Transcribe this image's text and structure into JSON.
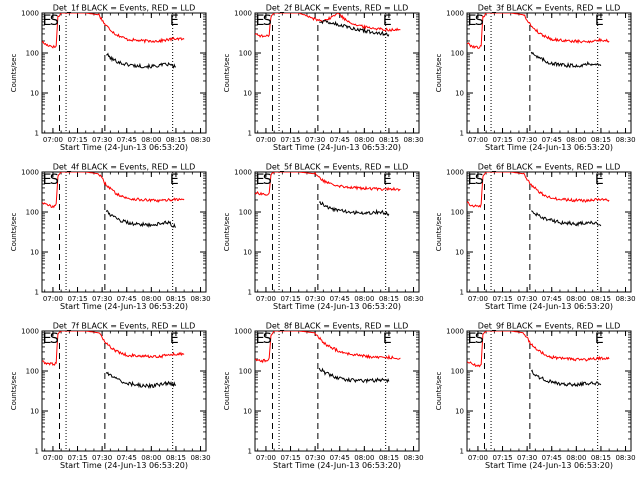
{
  "chart_data": {
    "type": "line",
    "y_scale": "log",
    "ylim": [
      1,
      1000
    ],
    "y_ticks": [
      "1",
      "10",
      "100",
      "1000"
    ],
    "ylabel": "Counts/sec",
    "xlabel": "Start Time (24-Jun-13 06:53:20)",
    "x_range": [
      "06:53:20",
      "08:33:20"
    ],
    "x_ticks": [
      "07:00",
      "07:15",
      "07:30",
      "07:45",
      "08:00",
      "08:15",
      "08:30"
    ],
    "colors": {
      "events": "#000000",
      "lld": "#ff0000"
    },
    "series_labels": {
      "events": "BLACK = Events",
      "lld": "RED = LLD"
    },
    "panels": [
      {
        "title": "Det_1f BLACK = Events, RED = LLD",
        "markers": {
          "start": "S",
          "end": "E"
        },
        "marker_times": {
          "S": "07:00:50",
          "E": "08:14:00"
        },
        "dashed_times": [
          "07:04:00",
          "07:31:40"
        ],
        "dotted_times": [
          "07:08:00",
          "08:13:00"
        ],
        "lld": {
          "t": [
            "06:53:20",
            "06:56",
            "06:59",
            "07:01",
            "07:02",
            "07:03",
            "07:05",
            "07:10",
            "07:20",
            "07:28",
            "07:32",
            "07:38",
            "07:45",
            "07:55",
            "08:05",
            "08:15",
            "08:20"
          ],
          "v": [
            190,
            160,
            150,
            140,
            150,
            800,
            1000,
            1000,
            1000,
            900,
            500,
            300,
            220,
            200,
            200,
            230,
            220
          ]
        },
        "events": {
          "t": [
            "07:32:30",
            "07:36",
            "07:42",
            "07:50",
            "08:00",
            "08:10",
            "08:15"
          ],
          "v": [
            95,
            70,
            55,
            48,
            46,
            52,
            45
          ]
        }
      },
      {
        "title": "Det_2f BLACK = Events, RED = LLD",
        "markers": {
          "start": "S",
          "end": "E"
        },
        "marker_times": {
          "S": "07:00:50",
          "E": "08:14:00"
        },
        "dashed_times": [
          "07:04:00",
          "07:31:40"
        ],
        "dotted_times": [
          "07:08:00",
          "08:13:00"
        ],
        "lld": {
          "t": [
            "06:53:20",
            "06:58",
            "07:01",
            "07:02",
            "07:03",
            "07:05",
            "07:10",
            "07:20",
            "07:30",
            "07:33",
            "07:38",
            "07:44",
            "07:48",
            "07:55",
            "08:00",
            "08:05",
            "08:15",
            "08:22"
          ],
          "v": [
            300,
            260,
            260,
            300,
            800,
            1000,
            1000,
            1000,
            700,
            650,
            700,
            1000,
            700,
            500,
            450,
            420,
            380,
            380
          ]
        },
        "events": {
          "t": [
            "07:32:30",
            "07:38",
            "07:45",
            "07:55",
            "08:05",
            "08:15"
          ],
          "v": [
            620,
            600,
            500,
            400,
            330,
            290
          ]
        }
      },
      {
        "title": "Det_3f BLACK = Events, RED = LLD",
        "markers": {
          "start": "S",
          "end": "E"
        },
        "marker_times": {
          "S": "07:00:50",
          "E": "08:14:00"
        },
        "dashed_times": [
          "07:04:00",
          "07:31:40"
        ],
        "dotted_times": [
          "07:08:00",
          "08:13:00"
        ],
        "lld": {
          "t": [
            "06:53:20",
            "06:56",
            "06:59",
            "07:01",
            "07:02",
            "07:03",
            "07:05",
            "07:10",
            "07:20",
            "07:28",
            "07:32",
            "07:38",
            "07:45",
            "07:55",
            "08:05",
            "08:15",
            "08:20"
          ],
          "v": [
            180,
            150,
            140,
            140,
            150,
            800,
            1000,
            1000,
            1000,
            900,
            500,
            300,
            220,
            200,
            190,
            210,
            200
          ]
        },
        "events": {
          "t": [
            "07:32:30",
            "07:36",
            "07:42",
            "07:50",
            "08:00",
            "08:10",
            "08:15"
          ],
          "v": [
            110,
            80,
            60,
            50,
            48,
            55,
            48
          ]
        }
      },
      {
        "title": "Det_4f BLACK = Events, RED = LLD",
        "markers": {
          "start": "S",
          "end": "E"
        },
        "marker_times": {
          "S": "07:00:50",
          "E": "08:14:00"
        },
        "dashed_times": [
          "07:04:00",
          "07:31:40"
        ],
        "dotted_times": [
          "07:08:00",
          "08:13:00"
        ],
        "lld": {
          "t": [
            "06:53:20",
            "06:56",
            "06:59",
            "07:01",
            "07:02",
            "07:03",
            "07:05",
            "07:10",
            "07:20",
            "07:28",
            "07:32",
            "07:38",
            "07:45",
            "07:55",
            "08:05",
            "08:15",
            "08:20"
          ],
          "v": [
            180,
            150,
            140,
            140,
            150,
            800,
            1000,
            1000,
            1000,
            900,
            500,
            300,
            220,
            200,
            190,
            210,
            200
          ]
        },
        "events": {
          "t": [
            "07:32:30",
            "07:36",
            "07:42",
            "07:50",
            "08:00",
            "08:10",
            "08:15"
          ],
          "v": [
            105,
            80,
            60,
            50,
            48,
            55,
            42
          ]
        }
      },
      {
        "title": "Det_5f BLACK = Events, RED = LLD",
        "markers": {
          "start": "S",
          "end": "E"
        },
        "marker_times": {
          "S": "07:00:50",
          "E": "08:14:00"
        },
        "dashed_times": [
          "07:04:00",
          "07:31:40"
        ],
        "dotted_times": [
          "07:08:00",
          "08:13:00"
        ],
        "lld": {
          "t": [
            "06:53:20",
            "06:58",
            "07:01",
            "07:02",
            "07:03",
            "07:05",
            "07:10",
            "07:20",
            "07:30",
            "07:35",
            "07:45",
            "07:55",
            "08:05",
            "08:15",
            "08:22"
          ],
          "v": [
            310,
            280,
            280,
            300,
            800,
            1000,
            1000,
            1000,
            900,
            600,
            450,
            400,
            380,
            380,
            370
          ]
        },
        "events": {
          "t": [
            "07:32:30",
            "07:36",
            "07:42",
            "07:50",
            "08:00",
            "08:10",
            "08:15"
          ],
          "v": [
            180,
            140,
            115,
            100,
            95,
            100,
            90
          ]
        }
      },
      {
        "title": "Det_6f BLACK = Events, RED = LLD",
        "markers": {
          "start": "S",
          "end": "E"
        },
        "marker_times": {
          "S": "07:00:50",
          "E": "08:14:00"
        },
        "dashed_times": [
          "07:04:00",
          "07:31:40"
        ],
        "dotted_times": [
          "07:08:00",
          "08:13:00"
        ],
        "lld": {
          "t": [
            "06:53:20",
            "06:56",
            "06:59",
            "07:01",
            "07:02",
            "07:03",
            "07:05",
            "07:10",
            "07:20",
            "07:28",
            "07:32",
            "07:38",
            "07:45",
            "07:55",
            "08:05",
            "08:15",
            "08:20"
          ],
          "v": [
            175,
            150,
            140,
            140,
            150,
            800,
            1000,
            1000,
            1000,
            900,
            500,
            300,
            220,
            200,
            190,
            210,
            200
          ]
        },
        "events": {
          "t": [
            "07:32:30",
            "07:36",
            "07:42",
            "07:50",
            "08:00",
            "08:10",
            "08:15"
          ],
          "v": [
            110,
            85,
            65,
            55,
            50,
            55,
            45
          ]
        }
      },
      {
        "title": "Det_7f BLACK = Events, RED = LLD",
        "markers": {
          "start": "S",
          "end": "E"
        },
        "marker_times": {
          "S": "07:00:50",
          "E": "08:14:00"
        },
        "dashed_times": [
          "07:04:00",
          "07:31:40"
        ],
        "dotted_times": [
          "07:08:00",
          "08:13:00"
        ],
        "lld": {
          "t": [
            "06:53:20",
            "06:56",
            "06:59",
            "07:01",
            "07:02",
            "07:03",
            "07:05",
            "07:10",
            "07:20",
            "07:28",
            "07:32",
            "07:38",
            "07:45",
            "07:55",
            "08:05",
            "08:15",
            "08:20"
          ],
          "v": [
            180,
            150,
            150,
            150,
            160,
            800,
            1000,
            1000,
            1000,
            900,
            500,
            320,
            250,
            230,
            230,
            270,
            260
          ]
        },
        "events": {
          "t": [
            "07:32:30",
            "07:36",
            "07:42",
            "07:50",
            "08:00",
            "08:10",
            "08:15"
          ],
          "v": [
            95,
            70,
            55,
            45,
            42,
            50,
            45
          ]
        }
      },
      {
        "title": "Det_8f BLACK = Events, RED = LLD",
        "markers": {
          "start": "S",
          "end": "E"
        },
        "marker_times": {
          "S": "07:00:50",
          "E": "08:14:00"
        },
        "dashed_times": [
          "07:04:00",
          "07:31:40"
        ],
        "dotted_times": [
          "07:08:00",
          "08:13:00"
        ],
        "lld": {
          "t": [
            "06:53:20",
            "06:58",
            "07:01",
            "07:02",
            "07:03",
            "07:05",
            "07:10",
            "07:20",
            "07:30",
            "07:35",
            "07:45",
            "07:55",
            "08:05",
            "08:15",
            "08:22"
          ],
          "v": [
            200,
            180,
            180,
            200,
            800,
            1000,
            1000,
            1000,
            900,
            500,
            300,
            250,
            220,
            220,
            210
          ]
        },
        "events": {
          "t": [
            "07:32:30",
            "07:36",
            "07:42",
            "07:50",
            "08:00",
            "08:10",
            "08:15"
          ],
          "v": [
            120,
            90,
            70,
            60,
            55,
            60,
            55
          ]
        }
      },
      {
        "title": "Det_9f BLACK = Events, RED = LLD",
        "markers": {
          "start": "S",
          "end": "E"
        },
        "marker_times": {
          "S": "07:00:50",
          "E": "08:14:00"
        },
        "dashed_times": [
          "07:04:00",
          "07:31:40"
        ],
        "dotted_times": [
          "07:08:00",
          "08:13:00"
        ],
        "lld": {
          "t": [
            "06:53:20",
            "06:56",
            "06:59",
            "07:01",
            "07:02",
            "07:03",
            "07:05",
            "07:10",
            "07:20",
            "07:28",
            "07:32",
            "07:38",
            "07:45",
            "07:55",
            "08:05",
            "08:15",
            "08:20"
          ],
          "v": [
            175,
            150,
            140,
            140,
            150,
            800,
            1000,
            1000,
            1000,
            900,
            500,
            300,
            220,
            200,
            190,
            210,
            200
          ]
        },
        "events": {
          "t": [
            "07:32:30",
            "07:36",
            "07:42",
            "07:50",
            "08:00",
            "08:10",
            "08:15"
          ],
          "v": [
            100,
            75,
            58,
            48,
            45,
            52,
            45
          ]
        }
      }
    ]
  }
}
